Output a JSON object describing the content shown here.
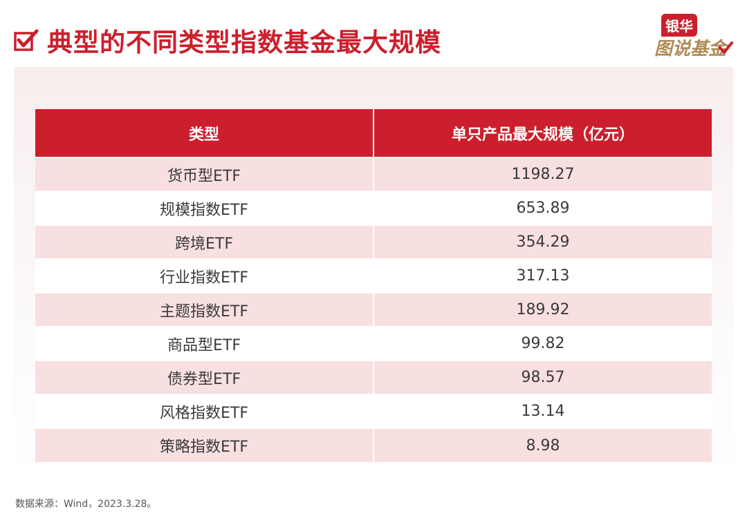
{
  "title": "典型的不同类型指数基金最大规模",
  "logo": {
    "top": "银华",
    "bottom": "图说基金"
  },
  "table": {
    "headers": [
      "类型",
      "单只产品最大规模（亿元）"
    ],
    "rows": [
      [
        "货币型ETF",
        "1198.27"
      ],
      [
        "规模指数ETF",
        "653.89"
      ],
      [
        "跨境ETF",
        "354.29"
      ],
      [
        "行业指数ETF",
        "317.13"
      ],
      [
        "主题指数ETF",
        "189.92"
      ],
      [
        "商品型ETF",
        "99.82"
      ],
      [
        "债券型ETF",
        "98.57"
      ],
      [
        "风格指数ETF",
        "13.14"
      ],
      [
        "策略指数ETF",
        "8.98"
      ]
    ]
  },
  "footnote": "数据来源：Wind，2023.3.28。",
  "colors": {
    "accent": "#cc1f2d",
    "stripe": "#f8dfe0",
    "logo_gold": "#b08a55"
  }
}
